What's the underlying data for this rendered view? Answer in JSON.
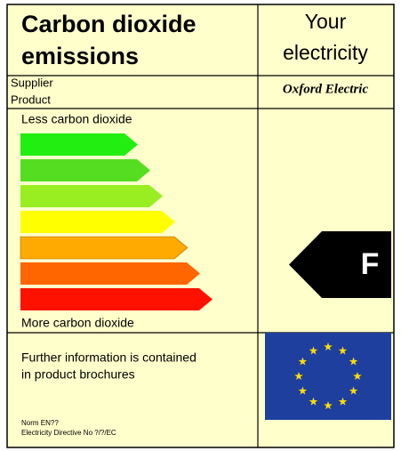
{
  "header": {
    "title_lines": [
      "Carbon dioxide",
      "emissions"
    ],
    "right_lines": [
      "Your",
      "electricity"
    ]
  },
  "supplier": {
    "labels": [
      "Supplier",
      "Product"
    ],
    "value": "Oxford Electric"
  },
  "scale": {
    "top": "Less carbon dioxide",
    "bottom": "More carbon dioxide",
    "rating": "F"
  },
  "info": {
    "lines": [
      "Further information is contained",
      "in product brochures"
    ],
    "norm": "Norm EN??",
    "directive": "Electricity Directive No ?/?/EC"
  }
}
